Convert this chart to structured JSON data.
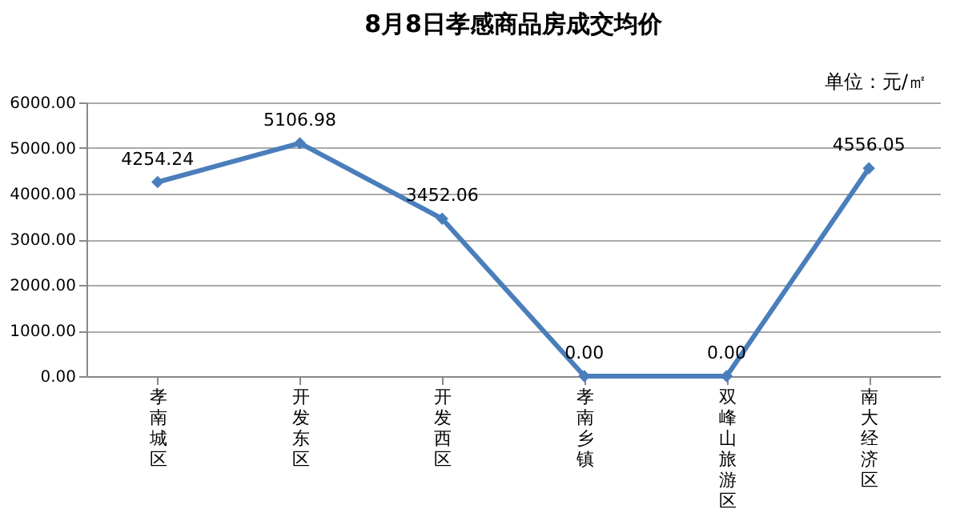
{
  "chart_data": {
    "type": "line",
    "title": "8月8日孝感商品房成交均价",
    "categories": [
      "孝南城区",
      "开发东区",
      "开发西区",
      "孝南乡镇",
      "双峰山旅游区",
      "南大经济区"
    ],
    "series": [
      {
        "color": "#4a7ebb",
        "values": [
          4254.24,
          5106.98,
          3452.06,
          0.0,
          0.0,
          4556.05
        ],
        "value_labels": [
          "4254.24",
          "5106.98",
          "3452.06",
          "0.00",
          "0.00",
          "4556.05"
        ]
      }
    ],
    "ylim": [
      0,
      6000
    ],
    "yticks": [
      {
        "value": 0,
        "label": "0.00"
      },
      {
        "value": 1000,
        "label": "1000.00"
      },
      {
        "value": 2000,
        "label": "2000.00"
      },
      {
        "value": 3000,
        "label": "3000.00"
      },
      {
        "value": 4000,
        "label": "4000.00"
      },
      {
        "value": 5000,
        "label": "5000.00"
      },
      {
        "value": 6000,
        "label": "6000.00"
      }
    ],
    "grid": "y",
    "marker": "diamond",
    "line_style": "solid",
    "annotations": [
      "单位：元/㎡"
    ]
  }
}
